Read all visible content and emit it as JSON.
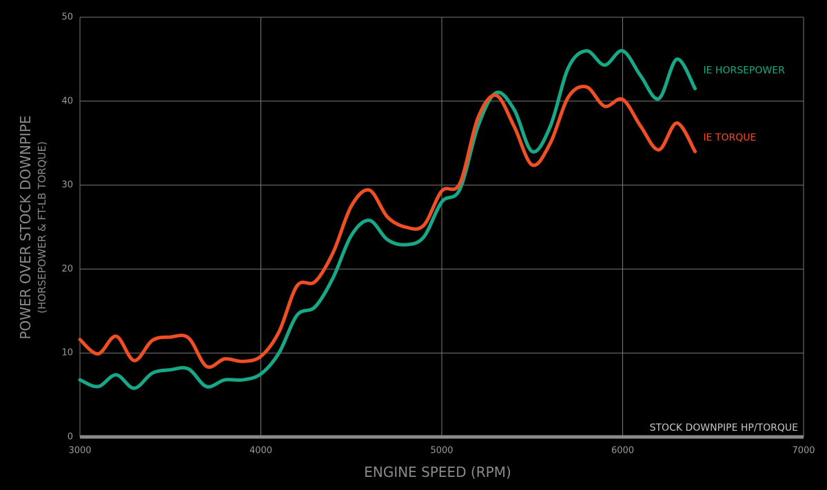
{
  "chart_data": {
    "type": "line",
    "x_label": "ENGINE SPEED (RPM)",
    "y_label": "POWER OVER STOCK DOWNPIPE",
    "y_sublabel": "(HORSEPOWER & FT-LB TORQUE)",
    "xlim": [
      3000,
      7000
    ],
    "xticks": [
      3000,
      4000,
      5000,
      6000,
      7000
    ],
    "ylim": [
      0,
      50
    ],
    "yticks": [
      0,
      10,
      20,
      30,
      40,
      50
    ],
    "grid": true,
    "baseline": {
      "label": "STOCK DOWNPIPE HP/TORQUE",
      "value": 0,
      "color": "#8a8a8a"
    },
    "x": [
      3000,
      3100,
      3200,
      3300,
      3400,
      3500,
      3600,
      3700,
      3800,
      3900,
      4000,
      4100,
      4200,
      4300,
      4400,
      4500,
      4600,
      4700,
      4800,
      4900,
      5000,
      5100,
      5200,
      5300,
      5400,
      5500,
      5600,
      5700,
      5800,
      5900,
      6000,
      6100,
      6200,
      6300,
      6400
    ],
    "series": [
      {
        "name": "IE HORSEPOWER",
        "color": "#17a887",
        "values": [
          6.8,
          6.0,
          7.4,
          5.8,
          7.6,
          8.0,
          8.1,
          6.0,
          6.8,
          6.8,
          7.5,
          10,
          14.5,
          15.5,
          19,
          24,
          25.8,
          23.5,
          22.9,
          23.8,
          28,
          29.5,
          37,
          41,
          39,
          34,
          37,
          44,
          46,
          44.3,
          46,
          43,
          40.3,
          45,
          41.5
        ]
      },
      {
        "name": "IE TORQUE",
        "color": "#f04e23",
        "values": [
          11.6,
          9.9,
          12.0,
          9.1,
          11.5,
          11.9,
          11.8,
          8.4,
          9.3,
          9.0,
          9.6,
          12.5,
          18,
          18.5,
          22,
          27.5,
          29.4,
          26.2,
          25,
          25.2,
          29.3,
          30.2,
          38,
          40.7,
          37,
          32.4,
          35,
          40.5,
          41.7,
          39.4,
          40.2,
          37,
          34.2,
          37.4,
          34
        ]
      }
    ]
  }
}
